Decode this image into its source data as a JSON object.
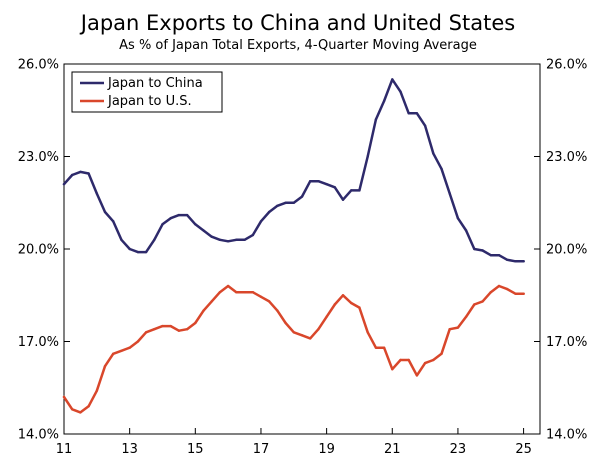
{
  "chart_data": {
    "type": "line",
    "title": "Japan Exports to China and United States",
    "subtitle": "As % of Japan Total Exports, 4-Quarter Moving Average",
    "xlim": [
      2011,
      2025.5
    ],
    "ylim": [
      14.0,
      26.0
    ],
    "x_ticks": [
      11,
      13,
      15,
      17,
      19,
      21,
      23,
      25
    ],
    "x_tick_labels": [
      "11",
      "13",
      "15",
      "17",
      "19",
      "21",
      "23",
      "25"
    ],
    "y_ticks": [
      14.0,
      17.0,
      20.0,
      23.0,
      26.0
    ],
    "y_tick_labels": [
      "14.0%",
      "17.0%",
      "20.0%",
      "23.0%",
      "26.0%"
    ],
    "legend_position": "top-left",
    "series": [
      {
        "name": "Japan to China",
        "color": "#2e2a6b",
        "x": [
          2011.0,
          2011.25,
          2011.5,
          2011.75,
          2012.0,
          2012.25,
          2012.5,
          2012.75,
          2013.0,
          2013.25,
          2013.5,
          2013.75,
          2014.0,
          2014.25,
          2014.5,
          2014.75,
          2015.0,
          2015.25,
          2015.5,
          2015.75,
          2016.0,
          2016.25,
          2016.5,
          2016.75,
          2017.0,
          2017.25,
          2017.5,
          2017.75,
          2018.0,
          2018.25,
          2018.5,
          2018.75,
          2019.0,
          2019.25,
          2019.5,
          2019.75,
          2020.0,
          2020.25,
          2020.5,
          2020.75,
          2021.0,
          2021.25,
          2021.5,
          2021.75,
          2022.0,
          2022.25,
          2022.5,
          2022.75,
          2023.0,
          2023.25,
          2023.5,
          2023.75,
          2024.0,
          2024.25,
          2024.5,
          2024.75,
          2025.0
        ],
        "values": [
          22.1,
          22.4,
          22.5,
          22.45,
          21.8,
          21.2,
          20.9,
          20.3,
          20.0,
          19.9,
          19.9,
          20.3,
          20.8,
          21.0,
          21.1,
          21.1,
          20.8,
          20.6,
          20.4,
          20.3,
          20.25,
          20.3,
          20.3,
          20.45,
          20.9,
          21.2,
          21.4,
          21.5,
          21.5,
          21.7,
          22.2,
          22.2,
          22.1,
          22.0,
          21.6,
          21.9,
          21.9,
          23.0,
          24.2,
          24.8,
          25.5,
          25.1,
          24.4,
          24.4,
          24.0,
          23.1,
          22.6,
          21.8,
          21.0,
          20.6,
          20.0,
          19.95,
          19.8,
          19.8,
          19.65,
          19.6,
          19.6
        ]
      },
      {
        "name": "Japan to U.S.",
        "color": "#d9472b",
        "x": [
          2011.0,
          2011.25,
          2011.5,
          2011.75,
          2012.0,
          2012.25,
          2012.5,
          2012.75,
          2013.0,
          2013.25,
          2013.5,
          2013.75,
          2014.0,
          2014.25,
          2014.5,
          2014.75,
          2015.0,
          2015.25,
          2015.5,
          2015.75,
          2016.0,
          2016.25,
          2016.5,
          2016.75,
          2017.0,
          2017.25,
          2017.5,
          2017.75,
          2018.0,
          2018.25,
          2018.5,
          2018.75,
          2019.0,
          2019.25,
          2019.5,
          2019.75,
          2020.0,
          2020.25,
          2020.5,
          2020.75,
          2021.0,
          2021.25,
          2021.5,
          2021.75,
          2022.0,
          2022.25,
          2022.5,
          2022.75,
          2023.0,
          2023.25,
          2023.5,
          2023.75,
          2024.0,
          2024.25,
          2024.5,
          2024.75,
          2025.0
        ],
        "values": [
          15.2,
          14.8,
          14.7,
          14.9,
          15.4,
          16.2,
          16.6,
          16.7,
          16.8,
          17.0,
          17.3,
          17.4,
          17.5,
          17.5,
          17.35,
          17.4,
          17.6,
          18.0,
          18.3,
          18.6,
          18.8,
          18.6,
          18.6,
          18.6,
          18.45,
          18.3,
          18.0,
          17.6,
          17.3,
          17.2,
          17.1,
          17.4,
          17.8,
          18.2,
          18.5,
          18.25,
          18.1,
          17.3,
          16.8,
          16.8,
          16.1,
          16.4,
          16.4,
          15.9,
          16.3,
          16.4,
          16.6,
          17.4,
          17.45,
          17.8,
          18.2,
          18.3,
          18.6,
          18.8,
          18.7,
          18.55,
          18.55
        ]
      }
    ]
  }
}
